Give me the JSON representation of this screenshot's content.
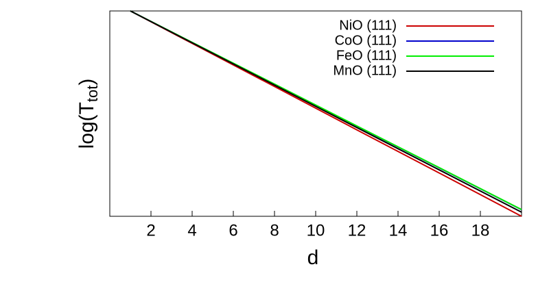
{
  "chart_data": {
    "type": "line",
    "xlabel": "d",
    "ylabel_parts": [
      "log(T",
      "tot",
      ")"
    ],
    "x": [
      1,
      4,
      8,
      12,
      16,
      20
    ],
    "series": [
      {
        "name": "NiO (111)",
        "color": "#cc0000",
        "values": [
          1,
          0.842,
          0.632,
          0.421,
          0.211,
          0.0
        ]
      },
      {
        "name": "CoO (111)",
        "color": "#0000cc",
        "values": [
          1,
          0.846,
          0.643,
          0.439,
          0.236,
          0.032
        ]
      },
      {
        "name": "FeO (111)",
        "color": "#00ee00",
        "values": [
          1,
          0.847,
          0.644,
          0.44,
          0.237,
          0.033
        ]
      },
      {
        "name": "MnO (111)",
        "color": "#000000",
        "values": [
          1,
          0.845,
          0.639,
          0.432,
          0.226,
          0.02
        ]
      }
    ],
    "xlim": [
      0,
      20
    ],
    "xticks": [
      2,
      4,
      6,
      8,
      10,
      12,
      14,
      16,
      18
    ],
    "ylim": [
      0,
      1
    ],
    "legend": "top-right"
  }
}
